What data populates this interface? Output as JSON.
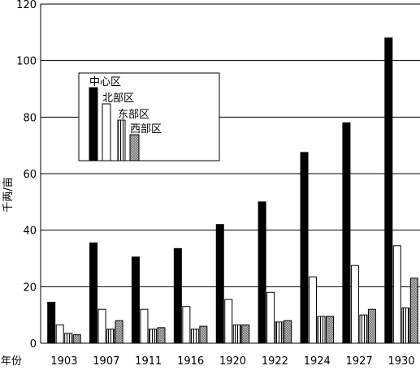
{
  "chart_data": {
    "type": "bar",
    "title": "",
    "xlabel": "年份",
    "ylabel": "千两/亩",
    "ylim": [
      0,
      120
    ],
    "yticks": [
      0,
      20,
      40,
      60,
      80,
      100,
      120
    ],
    "grid": "horizontal",
    "legend_position": "upper-left",
    "categories": [
      "1903",
      "1907",
      "1911",
      "1916",
      "1920",
      "1922",
      "1924",
      "1927",
      "1930"
    ],
    "series": [
      {
        "name": "中心区",
        "fill": "#000000",
        "values": [
          14.5,
          35.5,
          30.5,
          33.5,
          42,
          50,
          67.5,
          78,
          108
        ]
      },
      {
        "name": "北部区",
        "fill": "#ffffff",
        "values": [
          6.5,
          12,
          12,
          13,
          15.5,
          18,
          23.5,
          27.5,
          34.5
        ]
      },
      {
        "name": "东部区",
        "fill": "#ffffff",
        "pattern": "vertical-lines",
        "values": [
          3.5,
          5,
          5,
          5,
          6.5,
          7.5,
          9.5,
          10,
          12.5
        ]
      },
      {
        "name": "西部区",
        "fill": "#c8c8c8",
        "pattern": "crosshatch",
        "values": [
          3,
          8,
          5.5,
          6,
          6.5,
          8,
          9.5,
          12,
          23
        ]
      }
    ]
  }
}
